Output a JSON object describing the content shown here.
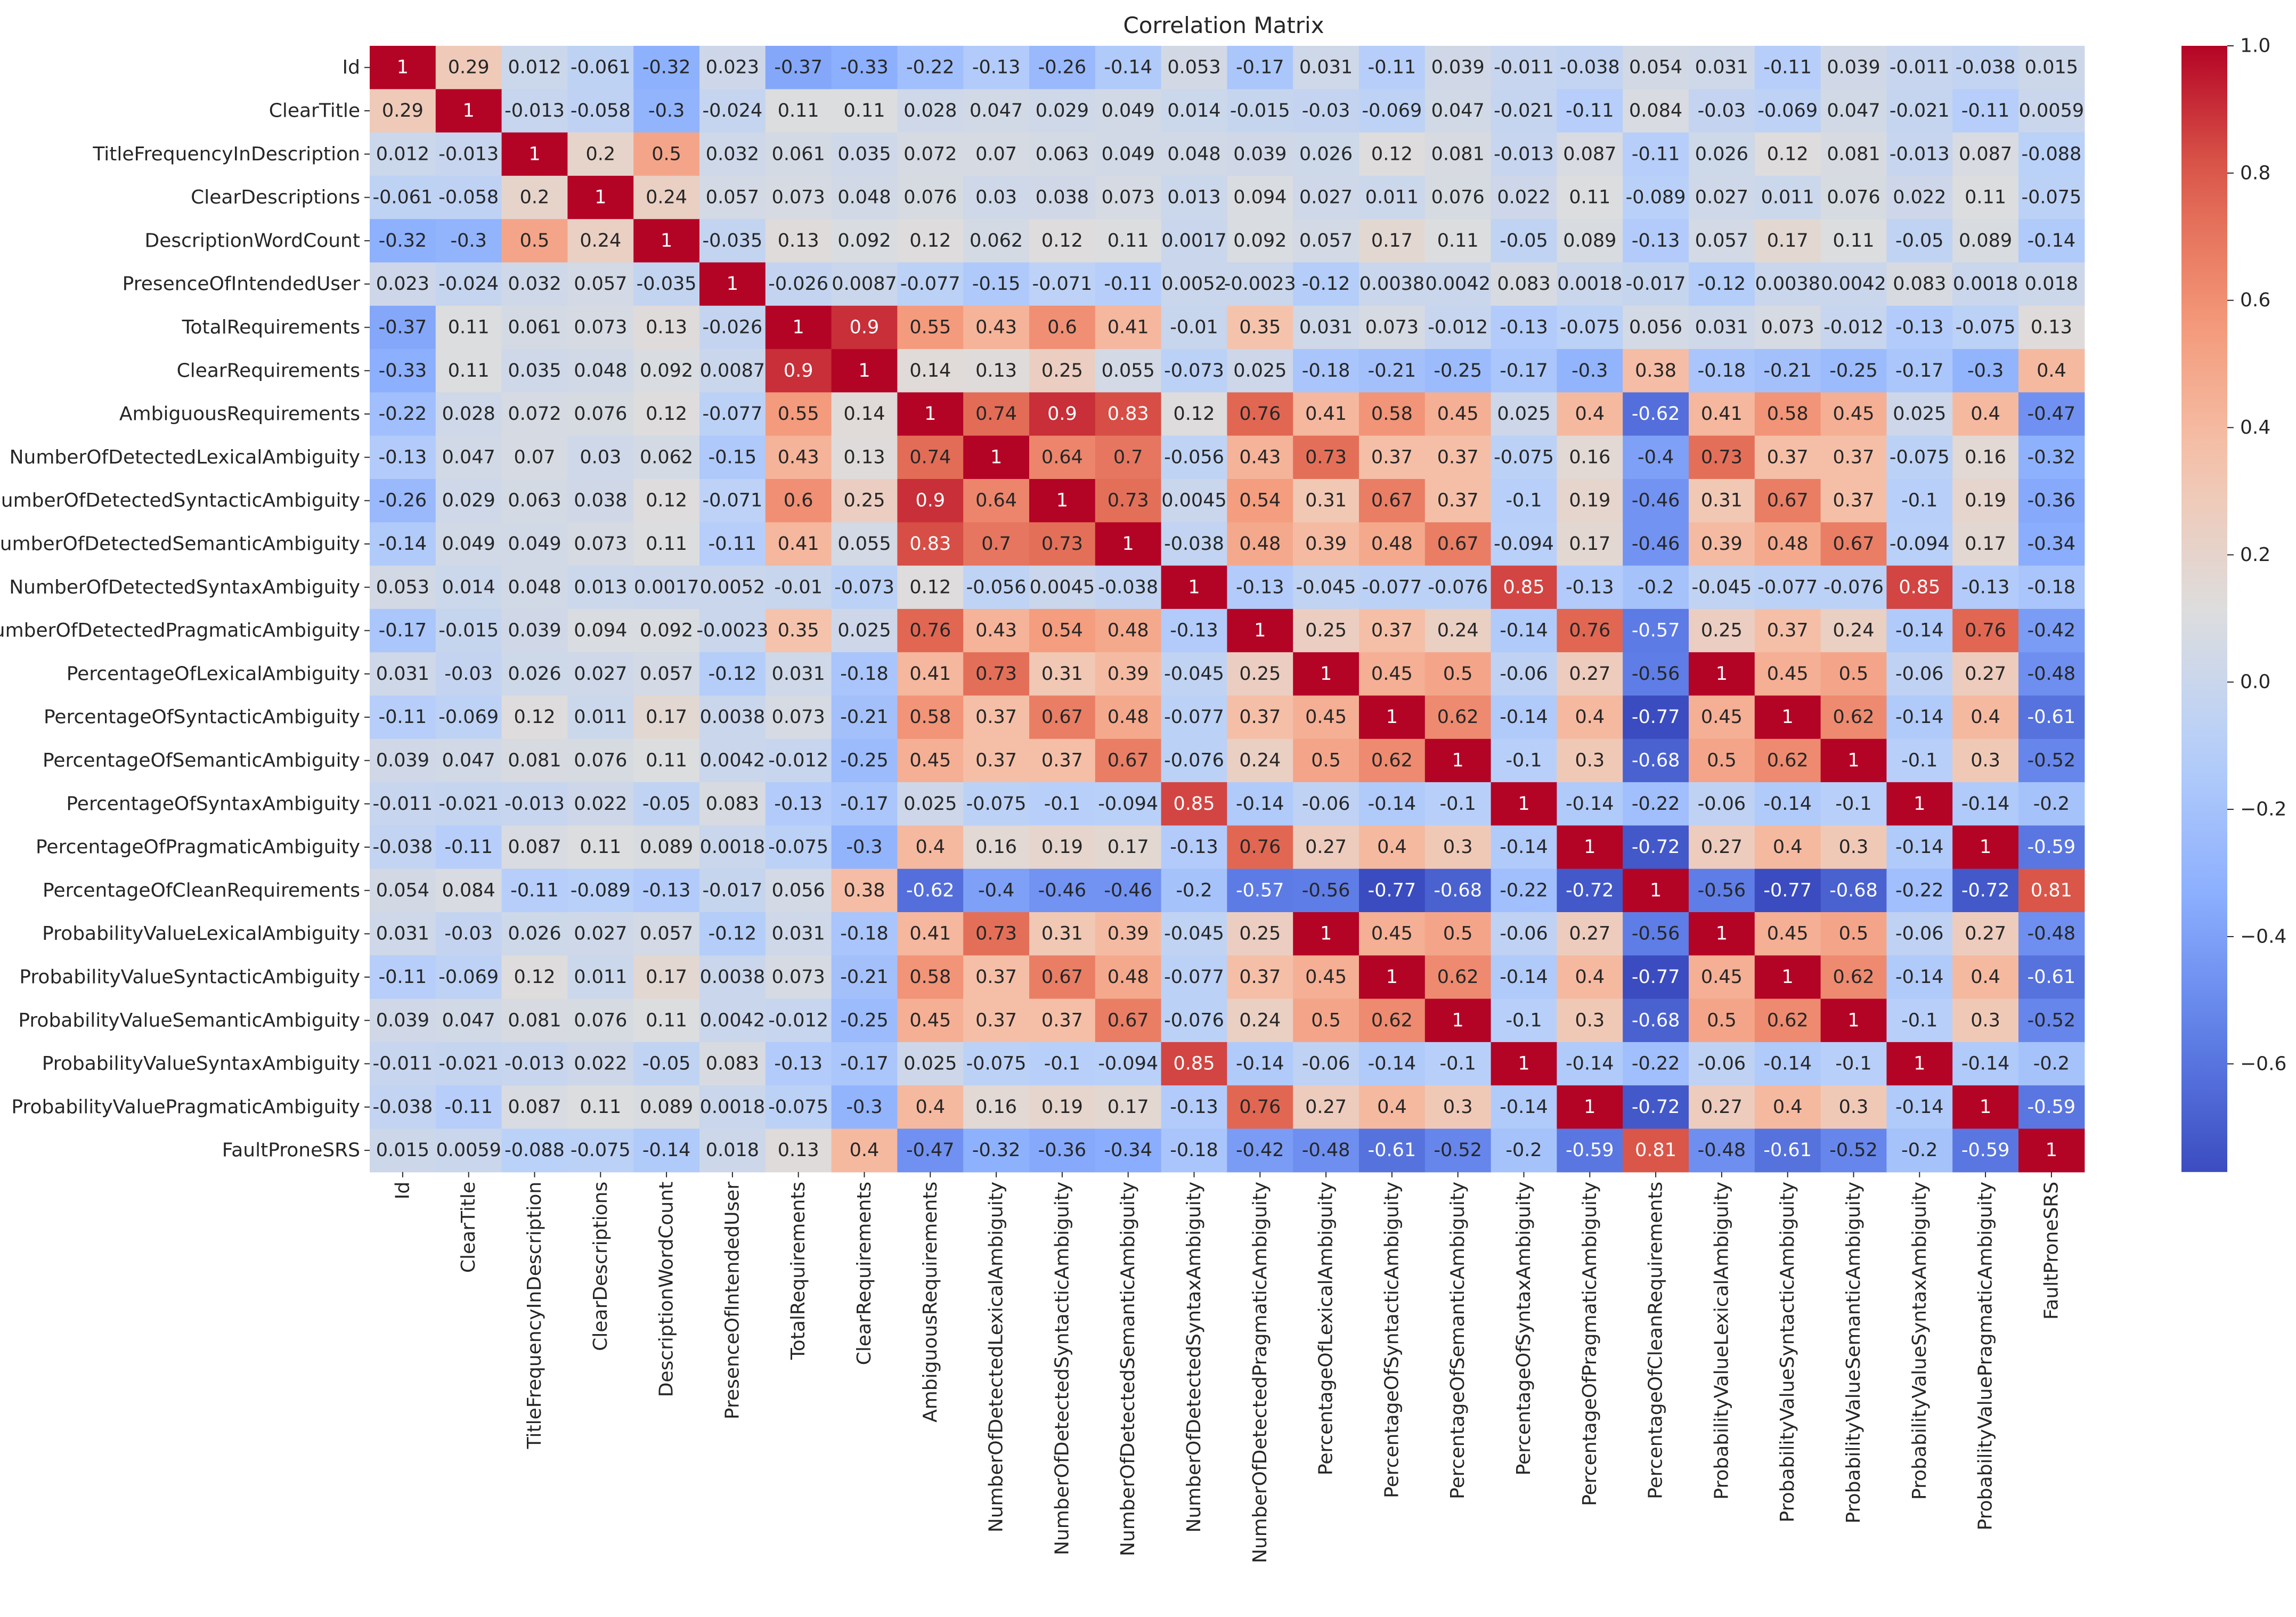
{
  "chart_data": {
    "type": "heatmap",
    "title": "Correlation Matrix",
    "xlabel": "",
    "ylabel": "",
    "labels": [
      "Id",
      "ClearTitle",
      "TitleFrequencyInDescription",
      "ClearDescriptions",
      "DescriptionWordCount",
      "PresenceOfIntendedUser",
      "TotalRequirements",
      "ClearRequirements",
      "AmbiguousRequirements",
      "NumberOfDetectedLexicalAmbiguity",
      "NumberOfDetectedSyntacticAmbiguity",
      "NumberOfDetectedSemanticAmbiguity",
      "NumberOfDetectedSyntaxAmbiguity",
      "NumberOfDetectedPragmaticAmbiguity",
      "PercentageOfLexicalAmbiguity",
      "PercentageOfSyntacticAmbiguity",
      "PercentageOfSemanticAmbiguity",
      "PercentageOfSyntaxAmbiguity",
      "PercentageOfPragmaticAmbiguity",
      "PercentageOfCleanRequirements",
      "ProbabilityValueLexicalAmbiguity",
      "ProbabilityValueSyntacticAmbiguity",
      "ProbabilityValueSemanticAmbiguity",
      "ProbabilityValueSyntaxAmbiguity",
      "ProbabilityValuePragmaticAmbiguity",
      "FaultProneSRS"
    ],
    "matrix": [
      [
        "1",
        "0.29",
        "0.012",
        "-0.061",
        "-0.32",
        "0.023",
        "-0.37",
        "-0.33",
        "-0.22",
        "-0.13",
        "-0.26",
        "-0.14",
        "0.053",
        "-0.17",
        "0.031",
        "-0.11",
        "0.039",
        "-0.011",
        "-0.038",
        "0.054",
        "0.031",
        "-0.11",
        "0.039",
        "-0.011",
        "-0.038",
        "0.015"
      ],
      [
        "0.29",
        "1",
        "-0.013",
        "-0.058",
        "-0.3",
        "-0.024",
        "0.11",
        "0.11",
        "0.028",
        "0.047",
        "0.029",
        "0.049",
        "0.014",
        "-0.015",
        "-0.03",
        "-0.069",
        "0.047",
        "-0.021",
        "-0.11",
        "0.084",
        "-0.03",
        "-0.069",
        "0.047",
        "-0.021",
        "-0.11",
        "0.0059"
      ],
      [
        "0.012",
        "-0.013",
        "1",
        "0.2",
        "0.5",
        "0.032",
        "0.061",
        "0.035",
        "0.072",
        "0.07",
        "0.063",
        "0.049",
        "0.048",
        "0.039",
        "0.026",
        "0.12",
        "0.081",
        "-0.013",
        "0.087",
        "-0.11",
        "0.026",
        "0.12",
        "0.081",
        "-0.013",
        "0.087",
        "-0.088"
      ],
      [
        "-0.061",
        "-0.058",
        "0.2",
        "1",
        "0.24",
        "0.057",
        "0.073",
        "0.048",
        "0.076",
        "0.03",
        "0.038",
        "0.073",
        "0.013",
        "0.094",
        "0.027",
        "0.011",
        "0.076",
        "0.022",
        "0.11",
        "-0.089",
        "0.027",
        "0.011",
        "0.076",
        "0.022",
        "0.11",
        "-0.075"
      ],
      [
        "-0.32",
        "-0.3",
        "0.5",
        "0.24",
        "1",
        "-0.035",
        "0.13",
        "0.092",
        "0.12",
        "0.062",
        "0.12",
        "0.11",
        "0.0017",
        "0.092",
        "0.057",
        "0.17",
        "0.11",
        "-0.05",
        "0.089",
        "-0.13",
        "0.057",
        "0.17",
        "0.11",
        "-0.05",
        "0.089",
        "-0.14"
      ],
      [
        "0.023",
        "-0.024",
        "0.032",
        "0.057",
        "-0.035",
        "1",
        "-0.026",
        "0.0087",
        "-0.077",
        "-0.15",
        "-0.071",
        "-0.11",
        "0.0052",
        "-0.0023",
        "-0.12",
        "0.0038",
        "0.0042",
        "0.083",
        "0.0018",
        "-0.017",
        "-0.12",
        "0.0038",
        "0.0042",
        "0.083",
        "0.0018",
        "0.018"
      ],
      [
        "-0.37",
        "0.11",
        "0.061",
        "0.073",
        "0.13",
        "-0.026",
        "1",
        "0.9",
        "0.55",
        "0.43",
        "0.6",
        "0.41",
        "-0.01",
        "0.35",
        "0.031",
        "0.073",
        "-0.012",
        "-0.13",
        "-0.075",
        "0.056",
        "0.031",
        "0.073",
        "-0.012",
        "-0.13",
        "-0.075",
        "0.13"
      ],
      [
        "-0.33",
        "0.11",
        "0.035",
        "0.048",
        "0.092",
        "0.0087",
        "0.9",
        "1",
        "0.14",
        "0.13",
        "0.25",
        "0.055",
        "-0.073",
        "0.025",
        "-0.18",
        "-0.21",
        "-0.25",
        "-0.17",
        "-0.3",
        "0.38",
        "-0.18",
        "-0.21",
        "-0.25",
        "-0.17",
        "-0.3",
        "0.4"
      ],
      [
        "-0.22",
        "0.028",
        "0.072",
        "0.076",
        "0.12",
        "-0.077",
        "0.55",
        "0.14",
        "1",
        "0.74",
        "0.9",
        "0.83",
        "0.12",
        "0.76",
        "0.41",
        "0.58",
        "0.45",
        "0.025",
        "0.4",
        "-0.62",
        "0.41",
        "0.58",
        "0.45",
        "0.025",
        "0.4",
        "-0.47"
      ],
      [
        "-0.13",
        "0.047",
        "0.07",
        "0.03",
        "0.062",
        "-0.15",
        "0.43",
        "0.13",
        "0.74",
        "1",
        "0.64",
        "0.7",
        "-0.056",
        "0.43",
        "0.73",
        "0.37",
        "0.37",
        "-0.075",
        "0.16",
        "-0.4",
        "0.73",
        "0.37",
        "0.37",
        "-0.075",
        "0.16",
        "-0.32"
      ],
      [
        "-0.26",
        "0.029",
        "0.063",
        "0.038",
        "0.12",
        "-0.071",
        "0.6",
        "0.25",
        "0.9",
        "0.64",
        "1",
        "0.73",
        "0.0045",
        "0.54",
        "0.31",
        "0.67",
        "0.37",
        "-0.1",
        "0.19",
        "-0.46",
        "0.31",
        "0.67",
        "0.37",
        "-0.1",
        "0.19",
        "-0.36"
      ],
      [
        "-0.14",
        "0.049",
        "0.049",
        "0.073",
        "0.11",
        "-0.11",
        "0.41",
        "0.055",
        "0.83",
        "0.7",
        "0.73",
        "1",
        "-0.038",
        "0.48",
        "0.39",
        "0.48",
        "0.67",
        "-0.094",
        "0.17",
        "-0.46",
        "0.39",
        "0.48",
        "0.67",
        "-0.094",
        "0.17",
        "-0.34"
      ],
      [
        "0.053",
        "0.014",
        "0.048",
        "0.013",
        "0.0017",
        "0.0052",
        "-0.01",
        "-0.073",
        "0.12",
        "-0.056",
        "0.0045",
        "-0.038",
        "1",
        "-0.13",
        "-0.045",
        "-0.077",
        "-0.076",
        "0.85",
        "-0.13",
        "-0.2",
        "-0.045",
        "-0.077",
        "-0.076",
        "0.85",
        "-0.13",
        "-0.18"
      ],
      [
        "-0.17",
        "-0.015",
        "0.039",
        "0.094",
        "0.092",
        "-0.0023",
        "0.35",
        "0.025",
        "0.76",
        "0.43",
        "0.54",
        "0.48",
        "-0.13",
        "1",
        "0.25",
        "0.37",
        "0.24",
        "-0.14",
        "0.76",
        "-0.57",
        "0.25",
        "0.37",
        "0.24",
        "-0.14",
        "0.76",
        "-0.42"
      ],
      [
        "0.031",
        "-0.03",
        "0.026",
        "0.027",
        "0.057",
        "-0.12",
        "0.031",
        "-0.18",
        "0.41",
        "0.73",
        "0.31",
        "0.39",
        "-0.045",
        "0.25",
        "1",
        "0.45",
        "0.5",
        "-0.06",
        "0.27",
        "-0.56",
        "1",
        "0.45",
        "0.5",
        "-0.06",
        "0.27",
        "-0.48"
      ],
      [
        "-0.11",
        "-0.069",
        "0.12",
        "0.011",
        "0.17",
        "0.0038",
        "0.073",
        "-0.21",
        "0.58",
        "0.37",
        "0.67",
        "0.48",
        "-0.077",
        "0.37",
        "0.45",
        "1",
        "0.62",
        "-0.14",
        "0.4",
        "-0.77",
        "0.45",
        "1",
        "0.62",
        "-0.14",
        "0.4",
        "-0.61"
      ],
      [
        "0.039",
        "0.047",
        "0.081",
        "0.076",
        "0.11",
        "0.0042",
        "-0.012",
        "-0.25",
        "0.45",
        "0.37",
        "0.37",
        "0.67",
        "-0.076",
        "0.24",
        "0.5",
        "0.62",
        "1",
        "-0.1",
        "0.3",
        "-0.68",
        "0.5",
        "0.62",
        "1",
        "-0.1",
        "0.3",
        "-0.52"
      ],
      [
        "-0.011",
        "-0.021",
        "-0.013",
        "0.022",
        "-0.05",
        "0.083",
        "-0.13",
        "-0.17",
        "0.025",
        "-0.075",
        "-0.1",
        "-0.094",
        "0.85",
        "-0.14",
        "-0.06",
        "-0.14",
        "-0.1",
        "1",
        "-0.14",
        "-0.22",
        "-0.06",
        "-0.14",
        "-0.1",
        "1",
        "-0.14",
        "-0.2"
      ],
      [
        "-0.038",
        "-0.11",
        "0.087",
        "0.11",
        "0.089",
        "0.0018",
        "-0.075",
        "-0.3",
        "0.4",
        "0.16",
        "0.19",
        "0.17",
        "-0.13",
        "0.76",
        "0.27",
        "0.4",
        "0.3",
        "-0.14",
        "1",
        "-0.72",
        "0.27",
        "0.4",
        "0.3",
        "-0.14",
        "1",
        "-0.59"
      ],
      [
        "0.054",
        "0.084",
        "-0.11",
        "-0.089",
        "-0.13",
        "-0.017",
        "0.056",
        "0.38",
        "-0.62",
        "-0.4",
        "-0.46",
        "-0.46",
        "-0.2",
        "-0.57",
        "-0.56",
        "-0.77",
        "-0.68",
        "-0.22",
        "-0.72",
        "1",
        "-0.56",
        "-0.77",
        "-0.68",
        "-0.22",
        "-0.72",
        "0.81"
      ],
      [
        "0.031",
        "-0.03",
        "0.026",
        "0.027",
        "0.057",
        "-0.12",
        "0.031",
        "-0.18",
        "0.41",
        "0.73",
        "0.31",
        "0.39",
        "-0.045",
        "0.25",
        "1",
        "0.45",
        "0.5",
        "-0.06",
        "0.27",
        "-0.56",
        "1",
        "0.45",
        "0.5",
        "-0.06",
        "0.27",
        "-0.48"
      ],
      [
        "-0.11",
        "-0.069",
        "0.12",
        "0.011",
        "0.17",
        "0.0038",
        "0.073",
        "-0.21",
        "0.58",
        "0.37",
        "0.67",
        "0.48",
        "-0.077",
        "0.37",
        "0.45",
        "1",
        "0.62",
        "-0.14",
        "0.4",
        "-0.77",
        "0.45",
        "1",
        "0.62",
        "-0.14",
        "0.4",
        "-0.61"
      ],
      [
        "0.039",
        "0.047",
        "0.081",
        "0.076",
        "0.11",
        "0.0042",
        "-0.012",
        "-0.25",
        "0.45",
        "0.37",
        "0.37",
        "0.67",
        "-0.076",
        "0.24",
        "0.5",
        "0.62",
        "1",
        "-0.1",
        "0.3",
        "-0.68",
        "0.5",
        "0.62",
        "1",
        "-0.1",
        "0.3",
        "-0.52"
      ],
      [
        "-0.011",
        "-0.021",
        "-0.013",
        "0.022",
        "-0.05",
        "0.083",
        "-0.13",
        "-0.17",
        "0.025",
        "-0.075",
        "-0.1",
        "-0.094",
        "0.85",
        "-0.14",
        "-0.06",
        "-0.14",
        "-0.1",
        "1",
        "-0.14",
        "-0.22",
        "-0.06",
        "-0.14",
        "-0.1",
        "1",
        "-0.14",
        "-0.2"
      ],
      [
        "-0.038",
        "-0.11",
        "0.087",
        "0.11",
        "0.089",
        "0.0018",
        "-0.075",
        "-0.3",
        "0.4",
        "0.16",
        "0.19",
        "0.17",
        "-0.13",
        "0.76",
        "0.27",
        "0.4",
        "0.3",
        "-0.14",
        "1",
        "-0.72",
        "0.27",
        "0.4",
        "0.3",
        "-0.14",
        "1",
        "-0.59"
      ],
      [
        "0.015",
        "0.0059",
        "-0.088",
        "-0.075",
        "-0.14",
        "0.018",
        "0.13",
        "0.4",
        "-0.47",
        "-0.32",
        "-0.36",
        "-0.34",
        "-0.18",
        "-0.42",
        "-0.48",
        "-0.61",
        "-0.52",
        "-0.2",
        "-0.59",
        "0.81",
        "-0.48",
        "-0.61",
        "-0.52",
        "-0.2",
        "-0.59",
        "1"
      ]
    ],
    "colorscale": {
      "name": "coolwarm",
      "vmin": -0.77,
      "vmax": 1.0,
      "ticks": [
        1.0,
        0.8,
        0.6,
        0.4,
        0.2,
        0.0,
        -0.2,
        -0.4,
        -0.6
      ],
      "tick_labels": [
        "1.0",
        "0.8",
        "0.6",
        "0.4",
        "0.2",
        "0.0",
        "−0.2",
        "−0.4",
        "−0.6"
      ],
      "low_color": "#3b4cc0",
      "mid_color": "#dddddd",
      "high_color": "#b40426"
    }
  }
}
